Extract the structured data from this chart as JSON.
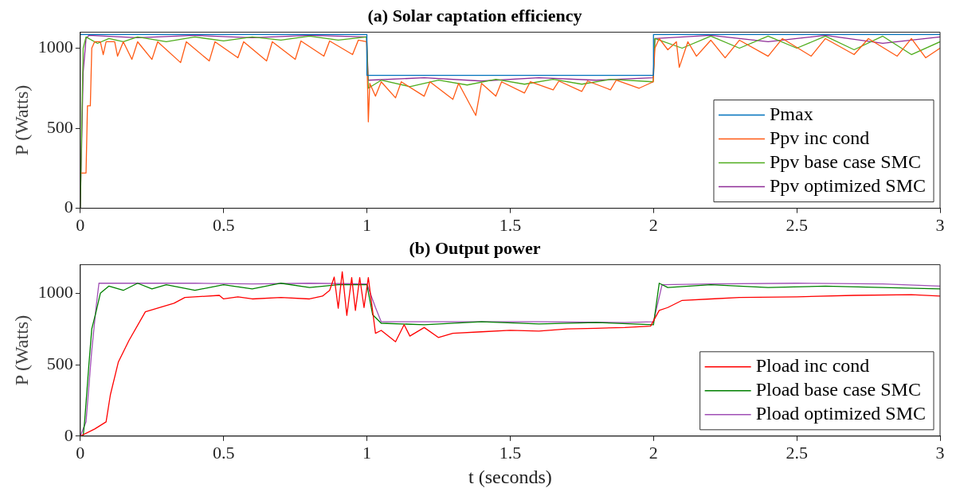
{
  "chart_data": [
    {
      "type": "line",
      "title": "(a) Solar captation efficiency",
      "ylabel": "P (Watts)",
      "xlim": [
        0,
        3
      ],
      "xticks": [
        0,
        0.5,
        1,
        1.5,
        2,
        2.5,
        3
      ],
      "ylim": [
        0,
        1100
      ],
      "yticks": [
        0,
        500,
        1000
      ],
      "grid": false,
      "legend": "bottom right",
      "marker": "none",
      "line_style": "solid",
      "series": [
        {
          "name": "Pmax",
          "color": "#0072bd",
          "x": [
            0,
            1,
            1,
            2,
            2,
            3
          ],
          "values": [
            1085,
            1085,
            830,
            830,
            1085,
            1085
          ]
        },
        {
          "name": "Ppv inc cond",
          "color": "#ff5a14",
          "x": [
            0.003,
            0.02,
            0.025,
            0.035,
            0.04,
            0.05,
            0.07,
            0.08,
            0.09,
            0.12,
            0.13,
            0.15,
            0.18,
            0.2,
            0.25,
            0.27,
            0.35,
            0.37,
            0.45,
            0.47,
            0.55,
            0.57,
            0.65,
            0.67,
            0.75,
            0.77,
            0.85,
            0.87,
            0.95,
            0.97,
            0.999,
            1.005,
            1.01,
            1.03,
            1.05,
            1.1,
            1.12,
            1.2,
            1.22,
            1.3,
            1.32,
            1.38,
            1.4,
            1.45,
            1.47,
            1.55,
            1.57,
            1.65,
            1.67,
            1.75,
            1.77,
            1.85,
            1.87,
            1.95,
            1.999,
            2.005,
            2.02,
            2.05,
            2.08,
            2.09,
            2.12,
            2.15,
            2.2,
            2.25,
            2.3,
            2.4,
            2.45,
            2.55,
            2.6,
            2.7,
            2.75,
            2.85,
            2.9,
            2.95,
            3
          ],
          "values": [
            220,
            220,
            640,
            640,
            1000,
            1040,
            1040,
            960,
            1040,
            1040,
            950,
            1040,
            930,
            1040,
            930,
            1040,
            910,
            1040,
            920,
            1040,
            940,
            1040,
            920,
            1040,
            930,
            1045,
            950,
            1045,
            960,
            1050,
            1040,
            540,
            780,
            700,
            790,
            690,
            790,
            700,
            790,
            680,
            780,
            580,
            780,
            700,
            790,
            720,
            790,
            740,
            795,
            730,
            795,
            740,
            800,
            750,
            790,
            1000,
            1060,
            990,
            1040,
            880,
            1040,
            950,
            1050,
            940,
            1050,
            950,
            1060,
            950,
            1060,
            960,
            1060,
            950,
            1060,
            940,
            1000
          ]
        },
        {
          "name": "Ppv base case SMC",
          "color": "#4fad1e",
          "x": [
            0,
            0.01,
            0.02,
            0.06,
            0.1,
            0.15,
            0.2,
            0.3,
            0.4,
            0.5,
            0.6,
            0.7,
            0.8,
            0.9,
            0.999,
            1.005,
            1.05,
            1.15,
            1.25,
            1.35,
            1.45,
            1.55,
            1.65,
            1.75,
            1.85,
            1.999,
            2.005,
            2.1,
            2.2,
            2.3,
            2.4,
            2.5,
            2.6,
            2.7,
            2.8,
            2.9,
            3
          ],
          "values": [
            0,
            1000,
            1070,
            1030,
            1060,
            1040,
            1070,
            1040,
            1070,
            1045,
            1070,
            1050,
            1075,
            1050,
            1070,
            750,
            800,
            760,
            800,
            770,
            805,
            775,
            805,
            775,
            805,
            790,
            1060,
            1000,
            1075,
            1000,
            1075,
            1000,
            1075,
            990,
            1075,
            960,
            1040
          ]
        },
        {
          "name": "Ppv optimized SMC",
          "color": "#8e2c96",
          "x": [
            0,
            0.01,
            0.02,
            0.03,
            0.2,
            0.4,
            0.6,
            0.8,
            0.999,
            1.005,
            1.2,
            1.4,
            1.6,
            1.8,
            1.999,
            2.005,
            2.2,
            2.4,
            2.6,
            2.8,
            3
          ],
          "values": [
            0,
            850,
            1060,
            1080,
            1065,
            1080,
            1065,
            1080,
            1070,
            800,
            815,
            795,
            815,
            800,
            815,
            1060,
            1080,
            1040,
            1080,
            1030,
            1070
          ]
        }
      ]
    },
    {
      "type": "line",
      "title": "(b) Output power",
      "xlabel": "t (seconds)",
      "ylabel": "P (Watts)",
      "xlim": [
        0,
        3
      ],
      "xticks": [
        0,
        0.5,
        1,
        1.5,
        2,
        2.5,
        3
      ],
      "ylim": [
        0,
        1200
      ],
      "yticks": [
        0,
        500,
        1000
      ],
      "grid": false,
      "legend": "bottom right",
      "marker": "none",
      "line_style": "solid",
      "series": [
        {
          "name": "Pload inc cond",
          "color": "#ff0000",
          "x": [
            0,
            0.05,
            0.09,
            0.105,
            0.133,
            0.17,
            0.227,
            0.327,
            0.365,
            0.485,
            0.5,
            0.55,
            0.6,
            0.7,
            0.8,
            0.845,
            0.87,
            0.886,
            0.9,
            0.914,
            0.93,
            0.947,
            0.96,
            0.975,
            0.99,
            1.005,
            1.03,
            1.05,
            1.1,
            1.13,
            1.15,
            1.2,
            1.25,
            1.3,
            1.4,
            1.5,
            1.6,
            1.7,
            1.8,
            1.9,
            1.99,
            2.02,
            2.05,
            2.1,
            2.2,
            2.3,
            2.5,
            2.7,
            2.9,
            3
          ],
          "values": [
            0,
            50,
            100,
            290,
            520,
            670,
            870,
            930,
            970,
            985,
            960,
            975,
            960,
            970,
            960,
            980,
            1020,
            1113,
            895,
            1150,
            845,
            1110,
            880,
            1110,
            900,
            1110,
            720,
            740,
            660,
            780,
            700,
            760,
            690,
            720,
            730,
            740,
            735,
            750,
            755,
            760,
            770,
            880,
            900,
            950,
            960,
            970,
            975,
            985,
            990,
            980
          ]
        },
        {
          "name": "Pload base case SMC",
          "color": "#008000",
          "x": [
            0,
            0.01,
            0.015,
            0.03,
            0.04,
            0.055,
            0.07,
            0.1,
            0.15,
            0.2,
            0.25,
            0.3,
            0.4,
            0.5,
            0.6,
            0.7,
            0.8,
            0.9,
            1.0,
            1.02,
            1.05,
            1.2,
            1.4,
            1.6,
            1.8,
            2.0,
            2.02,
            2.05,
            2.2,
            2.4,
            2.6,
            2.8,
            3
          ],
          "values": [
            0,
            0,
            100,
            500,
            750,
            870,
            1000,
            1050,
            1020,
            1070,
            1030,
            1060,
            1020,
            1060,
            1030,
            1070,
            1040,
            1060,
            1060,
            850,
            790,
            780,
            800,
            785,
            795,
            780,
            1070,
            1040,
            1060,
            1040,
            1050,
            1040,
            1030
          ]
        },
        {
          "name": "Pload optimized SMC",
          "color": "#a04fb5",
          "x": [
            0,
            0.02,
            0.04,
            0.055,
            0.065,
            0.2,
            0.4,
            0.6,
            0.8,
            1.0,
            1.03,
            1.05,
            1.3,
            1.6,
            1.9,
            2.0,
            2.03,
            2.2,
            2.5,
            2.8,
            3
          ],
          "values": [
            0,
            100,
            600,
            900,
            1070,
            1070,
            1070,
            1065,
            1070,
            1065,
            900,
            800,
            800,
            800,
            795,
            800,
            1060,
            1065,
            1070,
            1065,
            1050
          ]
        }
      ]
    }
  ]
}
